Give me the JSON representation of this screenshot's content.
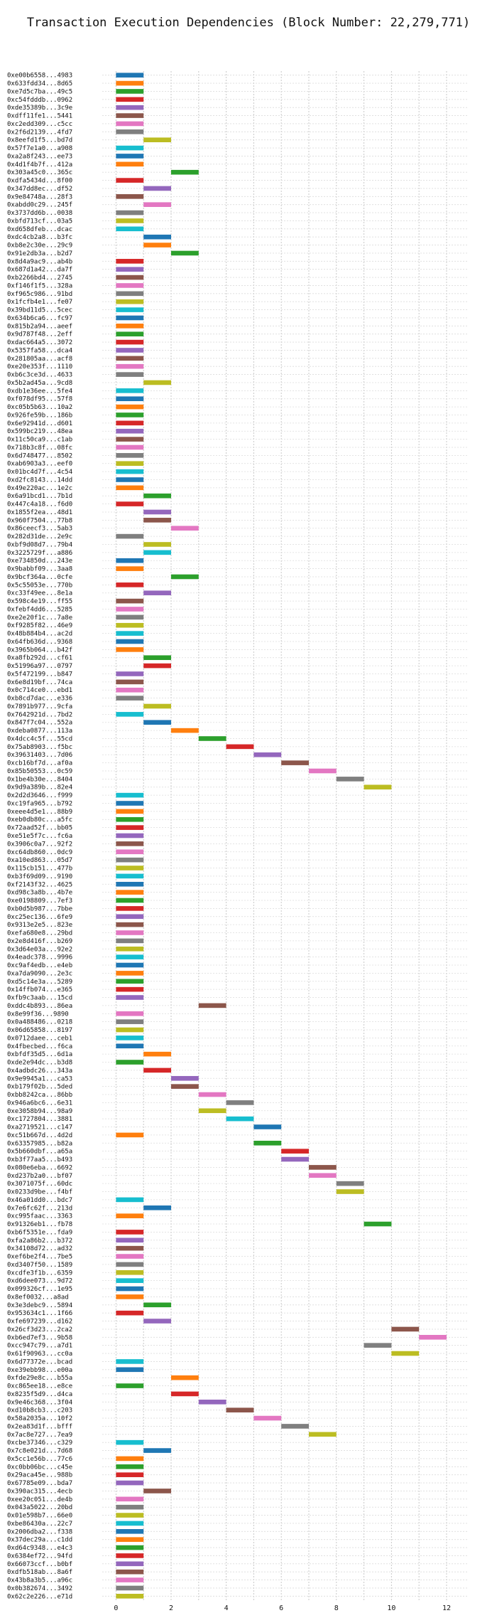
{
  "chart_data": {
    "type": "bar",
    "orientation": "horizontal",
    "title": "Transaction Execution Dependencies (Block Number: 22,279,771)",
    "xlabel": "",
    "ylabel": "",
    "xlim": [
      -0.5,
      12.8
    ],
    "xticks": [
      0,
      2,
      4,
      6,
      8,
      10,
      12
    ],
    "grid": true,
    "palette": [
      "#1f77b4",
      "#ff7f0e",
      "#2ca02c",
      "#d62728",
      "#9467bd",
      "#8c564b",
      "#e377c2",
      "#7f7f7f",
      "#bcbd22",
      "#17becf"
    ],
    "categories": [
      "0xe00b6558...4983",
      "0x633fdd34...8d65",
      "0xe7d5c7ba...49c5",
      "0xc54fdddb...0962",
      "0xde35389b...3c9e",
      "0xdff11fe1...5441",
      "0xc2edd309...c5cc",
      "0x2f6d2139...4fd7",
      "0x8eefd1f5...bd7d",
      "0x57f7e1a0...a908",
      "0xa2a8f243...ee73",
      "0x4d1f4b7f...412a",
      "0x303a45c0...365c",
      "0xdfa5434d...8f00",
      "0x347dd8ec...df52",
      "0x9e84748a...28f3",
      "0xabdd0c29...245f",
      "0x3737dd6b...0038",
      "0xbfd713cf...03a5",
      "0xd658dfeb...dcac",
      "0xdc4cb2a8...b3fc",
      "0xb8e2c30e...29c9",
      "0x91e2db3a...b2d7",
      "0x8d4a9ac9...ab4b",
      "0x687d1a42...da7f",
      "0xb2266bd4...2745",
      "0xf146f1f5...328a",
      "0xf965c986...91bd",
      "0x1fcfb4e1...fe07",
      "0x39bd11d5...5cec",
      "0x634b6ca6...fc97",
      "0x815b2a94...aeef",
      "0x9d787f48...2eff",
      "0xdac664a5...3072",
      "0x5357fa58...dca4",
      "0x281805aa...acf8",
      "0xe20e353f...1110",
      "0xb6c3ce3d...4633",
      "0x5b2ad45a...9cd8",
      "0xdb1e36ee...5fe4",
      "0xf078df95...57f8",
      "0xc05b5b63...10a2",
      "0x926fe59b...186b",
      "0x6e92941d...d601",
      "0x599bc219...48ea",
      "0x11c50ca9...c1ab",
      "0x718b3c8f...08fc",
      "0x6d748477...8502",
      "0xab6903a3...eef0",
      "0x01bc4d7f...4c54",
      "0xd2fc8143...14dd",
      "0x49e220ac...1e2c",
      "0x6a91bcd1...7b1d",
      "0x447c4a18...f6d0",
      "0x1855f2ea...48d1",
      "0x960f7504...77b8",
      "0x86ceecf3...5ab3",
      "0x282d31de...2e9c",
      "0xbf9d08d7...79b4",
      "0x3225729f...a886",
      "0xe734850d...243e",
      "0x9babbf09...3aa8",
      "0x9bcf364a...0cfe",
      "0x5c55053e...770b",
      "0xc33f49ee...8e1a",
      "0x598c4e19...ff55",
      "0xfebf4dd6...5285",
      "0xe2e20f1c...7a8e",
      "0xf9285f82...46e9",
      "0x48b884b4...ac2d",
      "0x64fb636d...9368",
      "0x3965b064...b42f",
      "0xa8fb292d...cf61",
      "0x51996a97...0797",
      "0x5f472199...b847",
      "0x6e8d19bf...74ca",
      "0x0c714ce0...ebd1",
      "0xb8cd7dac...e336",
      "0x7891b977...9cfa",
      "0x7642921d...7bd2",
      "0x847f7c04...552a",
      "0xdeba0877...113a",
      "0x4dcc4c5f...55cd",
      "0x75ab8903...f5bc",
      "0x39631403...7d06",
      "0xcb16bf7d...af0a",
      "0x85b50553...0c59",
      "0x1be4b30e...8404",
      "0x9d9a389b...82e4",
      "0x2d2d3646...f999",
      "0xc19fa965...b792",
      "0xeee4d5e1...88b9",
      "0xeb0db80c...a5fc",
      "0x72aad52f...bb05",
      "0xe51e5f7c...fc6a",
      "0x3906c0a7...92f2",
      "0xc64db860...0dc9",
      "0xa10ed863...05d7",
      "0x115cb151...477b",
      "0xb3f69d09...9190",
      "0xf2143f32...4625",
      "0xd98c3a8b...4b7e",
      "0xe0198809...7ef3",
      "0xb0d5b987...7bbe",
      "0xc25ec136...6fe9",
      "0x9313e2e5...823e",
      "0xefa680e8...29bd",
      "0x2e8d416f...b269",
      "0x3d64e03a...92e2",
      "0x4eadc378...9996",
      "0xc9af4edb...e4eb",
      "0xa7da9090...2e3c",
      "0xd5c14e3a...5289",
      "0x14ffb074...e365",
      "0xfb9c3aab...15cd",
      "0xddc4b893...86ea",
      "0x8e99f36...9890",
      "0x0a488486...0218",
      "0x06d65858...8197",
      "0x0712daee...ceb1",
      "0x4fbecbed...f6ca",
      "0xbfdf35d5...6d1a",
      "0xde2e94dc...b3d8",
      "0x4adbdc26...343a",
      "0x9e9945a1...ca53",
      "0xb179f02b...5ded",
      "0xbb8242ca...86bb",
      "0x946a6bc6...6e31",
      "0xe3058b94...98a9",
      "0xc1727804...3881",
      "0xa2719521...c147",
      "0xc51b667d...4d2d",
      "0x63357985...b82a",
      "0x5b660dbf...a65a",
      "0xb3f77aa5...b493",
      "0x080e6eba...6692",
      "0xd237b2a0...bf07",
      "0x3071075f...60dc",
      "0x0233d9be...f4bf",
      "0x46a01dd0...bdc7",
      "0x7e6fc62f...213d",
      "0xc995faac...3363",
      "0x91326eb1...fb78",
      "0xb6f5351e...fda9",
      "0xfa2a86b2...b372",
      "0x34108d72...ad32",
      "0xef6be2f4...7be5",
      "0xd3407f50...1589",
      "0xcdfe3f1b...6359",
      "0xd6dee073...9d72",
      "0x099326cf...1e95",
      "0x8ef0032...a8ad",
      "0x3e3debc9...5894",
      "0x953634c1...1f66",
      "0xfe697239...d162",
      "0x26cf3d23...2ca2",
      "0xb6ed7ef3...9b58",
      "0xcc947c79...a7d1",
      "0x61f90963...cc0a",
      "0x6d77372e...bcad",
      "0xe39ebb98...e00a",
      "0xfde29e8c...b55a",
      "0xc865ee18...e8ce",
      "0x8235f5d9...d4ca",
      "0x9e46c368...3f04",
      "0xd10b8cb3...c203",
      "0x58a2035a...10f2",
      "0x2ea83d1f...bfff",
      "0x7ac8e727...7ea9",
      "0xcbe37346...c329",
      "0x7c8e021d...7d68",
      "0x5cc1e56b...77c6",
      "0xc0bb06bc...c45e",
      "0x29aca45e...988b",
      "0x67785e09...bda7",
      "0x390ac315...4ecb",
      "0xee20c051...de4b",
      "0x043a5022...20bd",
      "0x01e598b7...66e0",
      "0xbe86430a...22c7",
      "0x2006dba2...f338",
      "0x37dec29a...c1dd",
      "0xd64c9348...e4c3",
      "0x6384ef72...94fd",
      "0x66073ccf...b0bf",
      "0xdfb518ab...8a6f",
      "0x43b8a3b5...a96c",
      "0x0b382674...3492",
      "0x62c2e226...e71d"
    ],
    "series": [
      {
        "start": [
          0,
          0,
          0,
          0,
          0,
          0,
          0,
          0,
          1,
          0,
          0,
          0,
          2,
          0,
          1,
          0,
          1,
          0,
          0,
          0,
          1,
          1,
          2,
          0,
          0,
          0,
          0,
          0,
          0,
          0,
          0,
          0,
          0,
          0,
          0,
          0,
          0,
          0,
          1,
          0,
          0,
          0,
          0,
          0,
          0,
          0,
          0,
          0,
          0,
          0,
          0,
          0,
          1,
          0,
          1,
          1,
          2,
          0,
          1,
          1,
          0,
          0,
          2,
          0,
          1,
          0,
          0,
          0,
          0,
          0,
          0,
          0,
          1,
          1,
          0,
          0,
          0,
          0,
          1,
          0,
          1,
          2,
          3,
          4,
          5,
          6,
          7,
          8,
          9,
          0,
          0,
          0,
          0,
          0,
          0,
          0,
          0,
          0,
          0,
          0,
          0,
          0,
          0,
          0,
          0,
          0,
          0,
          0,
          0,
          0,
          0,
          0,
          0,
          0,
          0,
          3,
          0,
          0,
          0,
          0,
          0,
          1,
          0,
          1,
          2,
          2,
          3,
          4,
          3,
          4,
          5,
          0,
          5,
          6,
          6,
          7,
          7,
          8,
          8,
          0,
          1,
          0,
          9,
          0,
          0,
          0,
          0,
          0,
          0,
          0,
          0,
          0,
          1,
          0,
          1,
          10,
          11,
          9,
          10,
          0,
          0,
          2,
          0,
          2,
          3,
          4,
          5,
          6,
          7,
          0,
          1,
          0,
          0,
          0,
          0,
          1,
          0,
          0,
          0,
          0,
          0,
          0,
          0,
          0,
          0,
          0,
          0,
          0,
          0,
          0
        ],
        "end": [
          1,
          1,
          1,
          1,
          1,
          1,
          1,
          1,
          2,
          1,
          1,
          1,
          3,
          1,
          2,
          1,
          2,
          1,
          1,
          1,
          2,
          2,
          3,
          1,
          1,
          1,
          1,
          1,
          1,
          1,
          1,
          1,
          1,
          1,
          1,
          1,
          1,
          1,
          2,
          1,
          1,
          1,
          1,
          1,
          1,
          1,
          1,
          1,
          1,
          1,
          1,
          1,
          2,
          1,
          2,
          2,
          3,
          1,
          2,
          2,
          1,
          1,
          3,
          1,
          2,
          1,
          1,
          1,
          1,
          1,
          1,
          1,
          2,
          2,
          1,
          1,
          1,
          1,
          2,
          1,
          2,
          3,
          4,
          5,
          6,
          7,
          8,
          9,
          10,
          1,
          1,
          1,
          1,
          1,
          1,
          1,
          1,
          1,
          1,
          1,
          1,
          1,
          1,
          1,
          1,
          1,
          1,
          1,
          1,
          1,
          1,
          1,
          1,
          1,
          1,
          4,
          1,
          1,
          1,
          1,
          1,
          2,
          1,
          2,
          3,
          3,
          4,
          5,
          4,
          5,
          6,
          1,
          6,
          7,
          7,
          8,
          8,
          9,
          9,
          1,
          2,
          1,
          10,
          1,
          1,
          1,
          1,
          1,
          1,
          1,
          1,
          1,
          2,
          1,
          2,
          11,
          12,
          10,
          11,
          1,
          1,
          3,
          1,
          3,
          4,
          5,
          6,
          7,
          8,
          1,
          2,
          1,
          1,
          1,
          1,
          2,
          1,
          1,
          1,
          1,
          1,
          1,
          1,
          1,
          1,
          1,
          1,
          1,
          1,
          1
        ]
      }
    ]
  }
}
